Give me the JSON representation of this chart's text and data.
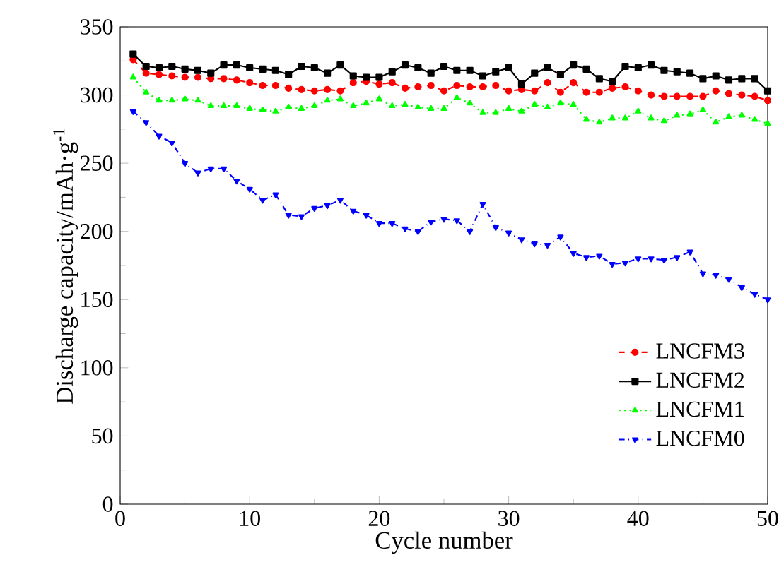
{
  "chart_data": {
    "type": "line",
    "xlabel": "Cycle number",
    "ylabel": "Discharge capacity/mAh·g$^{-1}$",
    "xlim": [
      0,
      50
    ],
    "xticks": [
      0,
      10,
      20,
      30,
      40,
      50
    ],
    "ylim": [
      0,
      350
    ],
    "yticks": [
      0,
      50,
      100,
      150,
      200,
      250,
      300,
      350
    ],
    "x": [
      1,
      2,
      3,
      4,
      5,
      6,
      7,
      8,
      9,
      10,
      11,
      12,
      13,
      14,
      15,
      16,
      17,
      18,
      19,
      20,
      21,
      22,
      23,
      24,
      25,
      26,
      27,
      28,
      29,
      30,
      31,
      32,
      33,
      34,
      35,
      36,
      37,
      38,
      39,
      40,
      41,
      42,
      43,
      44,
      45,
      46,
      47,
      48,
      49,
      50
    ],
    "legend": "bottom right",
    "grid": false,
    "series": [
      {
        "name": "LNCFM3",
        "color": "#ff0000",
        "marker": "circle",
        "line_style": "dashed",
        "values": [
          326,
          316,
          315,
          314,
          313,
          313,
          312,
          312,
          311,
          309,
          307,
          307,
          305,
          304,
          303,
          304,
          303,
          309,
          310,
          308,
          309,
          305,
          306,
          307,
          303,
          307,
          306,
          306,
          307,
          303,
          304,
          303,
          309,
          302,
          309,
          302,
          302,
          305,
          306,
          303,
          300,
          299,
          299,
          299,
          299,
          303,
          301,
          300,
          299,
          296
        ]
      },
      {
        "name": "LNCFM2",
        "color": "#000000",
        "marker": "square",
        "line_style": "solid",
        "values": [
          330,
          321,
          320,
          321,
          319,
          318,
          316,
          322,
          322,
          320,
          319,
          318,
          315,
          321,
          320,
          316,
          322,
          314,
          313,
          313,
          317,
          322,
          320,
          316,
          321,
          318,
          318,
          314,
          317,
          320,
          308,
          316,
          320,
          315,
          322,
          319,
          312,
          310,
          321,
          320,
          322,
          318,
          317,
          316,
          312,
          314,
          311,
          312,
          312,
          303
        ]
      },
      {
        "name": "LNCFM1",
        "color": "#00ff00",
        "marker": "triangle",
        "line_style": "dotted",
        "values": [
          313,
          302,
          296,
          296,
          297,
          296,
          292,
          292,
          292,
          290,
          289,
          288,
          291,
          290,
          292,
          296,
          297,
          292,
          294,
          297,
          292,
          293,
          291,
          290,
          290,
          298,
          294,
          287,
          287,
          290,
          288,
          293,
          291,
          294,
          293,
          282,
          280,
          283,
          283,
          288,
          283,
          281,
          285,
          286,
          289,
          280,
          284,
          285,
          282,
          279
        ]
      },
      {
        "name": "LNCFM0",
        "color": "#0000ff",
        "marker": "triangle_down",
        "line_style": "dashdot",
        "values": [
          288,
          280,
          270,
          265,
          250,
          243,
          246,
          246,
          237,
          231,
          223,
          227,
          212,
          211,
          217,
          219,
          223,
          215,
          212,
          206,
          206,
          202,
          200,
          207,
          209,
          208,
          200,
          220,
          203,
          199,
          194,
          191,
          190,
          196,
          184,
          181,
          182,
          176,
          177,
          180,
          180,
          179,
          181,
          185,
          169,
          168,
          165,
          159,
          154,
          150
        ]
      }
    ]
  }
}
